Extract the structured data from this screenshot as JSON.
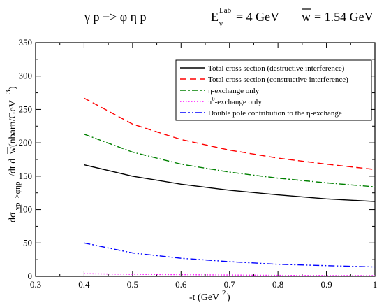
{
  "chart_data": {
    "type": "line",
    "title": {
      "reaction": "γ p  −> φ η p",
      "energy_symbol": "E",
      "energy_sub": "γ",
      "energy_sup": "Lab",
      "energy_value": "= 4 GeV",
      "w_symbol": "w",
      "w_value": "= 1.54 GeV"
    },
    "xlabel": {
      "main": "-t (GeV",
      "sup": "2",
      "close": ")"
    },
    "ylabel": {
      "d1": "dσ",
      "sub": "γp−>φηp",
      "mid": "/dt d",
      "w": "w",
      "unit": " (nbarn/GeV",
      "sup": "3",
      "close": ")"
    },
    "xlim": [
      0.3,
      1.0
    ],
    "ylim": [
      0,
      350
    ],
    "xticks": [
      "0.3",
      "0.4",
      "0.5",
      "0.6",
      "0.7",
      "0.8",
      "0.9",
      "1"
    ],
    "yticks": [
      "0",
      "50",
      "100",
      "150",
      "200",
      "250",
      "300",
      "350"
    ],
    "grid": false,
    "legend_position": "top-right",
    "x": [
      0.4,
      0.5,
      0.6,
      0.7,
      0.8,
      0.9,
      1.0
    ],
    "series": [
      {
        "name": "Total cross section (destructive interference)",
        "name_sup": "",
        "name_tail": "",
        "color": "#000000",
        "dash": "solid",
        "values": [
          167,
          150,
          138,
          129,
          122,
          116,
          112
        ]
      },
      {
        "name": "Total cross section (constructive interference)",
        "name_sup": "",
        "name_tail": "",
        "color": "#ff0000",
        "dash": "dashed",
        "values": [
          267,
          228,
          205,
          189,
          177,
          168,
          160
        ]
      },
      {
        "name": "η-exchange only",
        "name_sup": "",
        "name_tail": "",
        "color": "#008000",
        "dash": "dashdot",
        "values": [
          213,
          186,
          168,
          156,
          147,
          140,
          134
        ]
      },
      {
        "name": "π",
        "name_sup": "0",
        "name_tail": "-exchange only",
        "color": "#ff00ff",
        "dash": "dotted",
        "values": [
          4,
          3,
          2.5,
          2,
          1.5,
          1.2,
          1
        ]
      },
      {
        "name": "Double pole contribution to the η-exchange",
        "name_sup": "",
        "name_tail": "",
        "color": "#0000ff",
        "dash": "dashdotdot",
        "values": [
          50,
          35,
          27,
          22,
          18,
          16,
          14
        ]
      }
    ]
  }
}
